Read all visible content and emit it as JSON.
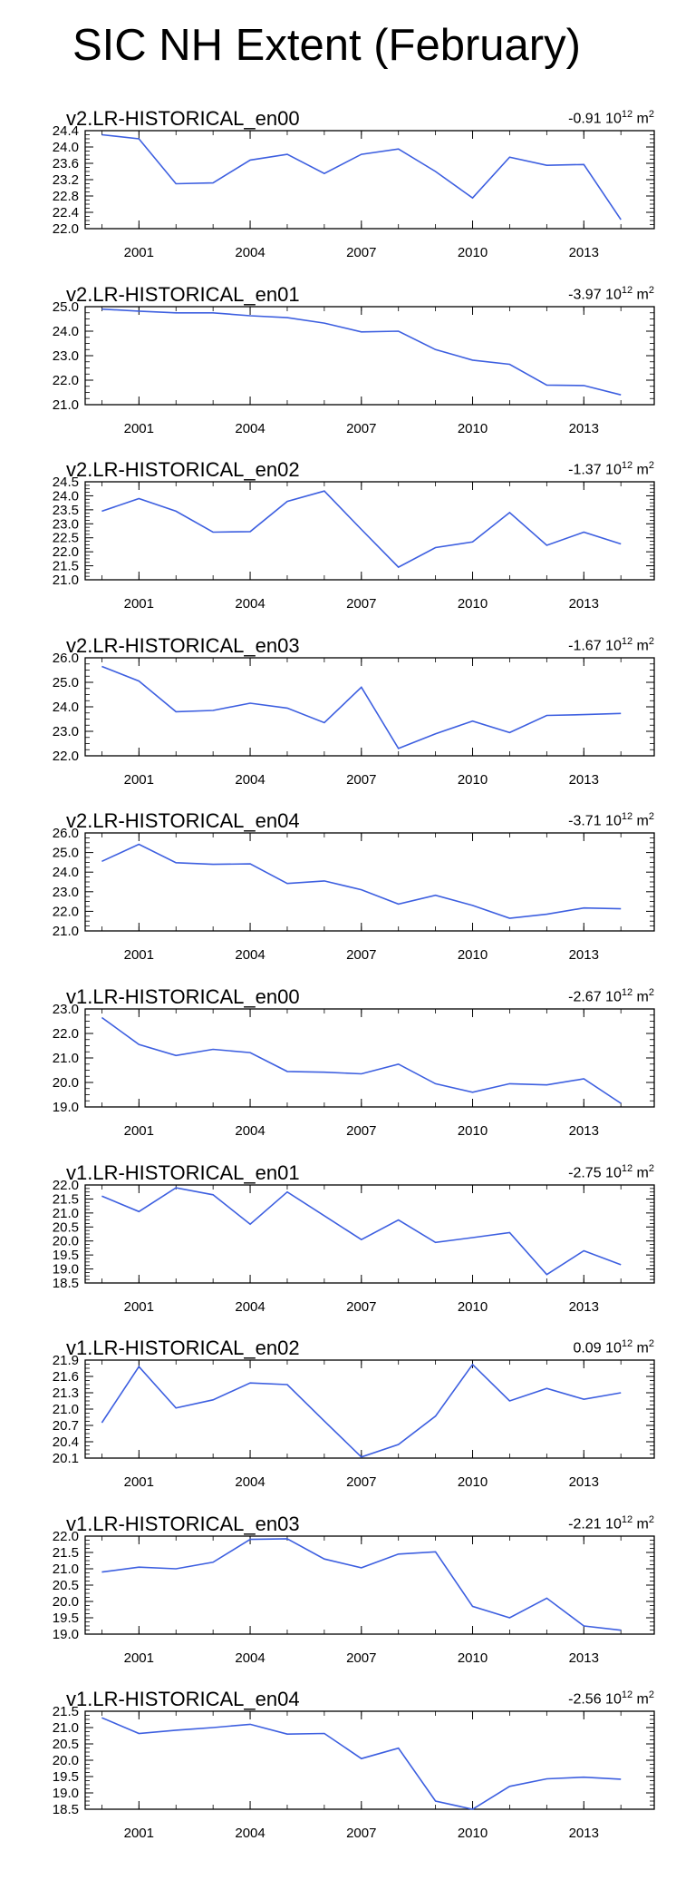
{
  "title": "SIC NH Extent (February)",
  "chart_data": [
    {
      "type": "line",
      "title": "v2.LR-HISTORICAL_en00",
      "trend": "-0.91",
      "trend_exp": "12",
      "trend_unit": "m",
      "trend_unit_exp": "2",
      "x": [
        2000,
        2001,
        2002,
        2003,
        2004,
        2005,
        2006,
        2007,
        2008,
        2009,
        2010,
        2011,
        2012,
        2013,
        2014
      ],
      "series": [
        {
          "values": [
            24.3,
            24.2,
            23.1,
            23.12,
            23.68,
            23.82,
            23.35,
            23.82,
            23.95,
            23.4,
            22.75,
            23.75,
            23.55,
            23.57,
            22.22
          ]
        }
      ],
      "ylim": [
        22.0,
        24.4
      ],
      "yticks": [
        "24.4",
        "24.0",
        "23.6",
        "23.2",
        "22.8",
        "22.4",
        "22.0"
      ],
      "xticks": [
        "2001",
        "2004",
        "2007",
        "2010",
        "2013"
      ],
      "color": "#3d5fe0"
    },
    {
      "type": "line",
      "title": "v2.LR-HISTORICAL_en01",
      "trend": "-3.97",
      "trend_exp": "12",
      "trend_unit": "m",
      "trend_unit_exp": "2",
      "x": [
        2000,
        2001,
        2002,
        2003,
        2004,
        2005,
        2006,
        2007,
        2008,
        2009,
        2010,
        2011,
        2012,
        2013,
        2014
      ],
      "series": [
        {
          "values": [
            24.9,
            24.82,
            24.75,
            24.75,
            24.63,
            24.55,
            24.33,
            23.97,
            24.0,
            23.25,
            22.82,
            22.65,
            21.8,
            21.78,
            21.4
          ]
        }
      ],
      "ylim": [
        21.0,
        25.0
      ],
      "yticks": [
        "25.0",
        "24.0",
        "23.0",
        "22.0",
        "21.0"
      ],
      "xticks": [
        "2001",
        "2004",
        "2007",
        "2010",
        "2013"
      ],
      "color": "#3d5fe0"
    },
    {
      "type": "line",
      "title": "v2.LR-HISTORICAL_en02",
      "trend": "-1.37",
      "trend_exp": "12",
      "trend_unit": "m",
      "trend_unit_exp": "2",
      "x": [
        2000,
        2001,
        2002,
        2003,
        2004,
        2005,
        2006,
        2007,
        2008,
        2009,
        2010,
        2011,
        2012,
        2013,
        2014
      ],
      "series": [
        {
          "values": [
            23.45,
            23.9,
            23.45,
            22.7,
            22.72,
            23.8,
            24.17,
            22.8,
            21.45,
            22.15,
            22.35,
            23.4,
            22.23,
            22.7,
            22.28
          ]
        }
      ],
      "ylim": [
        21.0,
        24.5
      ],
      "yticks": [
        "24.5",
        "24.0",
        "23.5",
        "23.0",
        "22.5",
        "22.0",
        "21.5",
        "21.0"
      ],
      "xticks": [
        "2001",
        "2004",
        "2007",
        "2010",
        "2013"
      ],
      "color": "#3d5fe0"
    },
    {
      "type": "line",
      "title": "v2.LR-HISTORICAL_en03",
      "trend": "-1.67",
      "trend_exp": "12",
      "trend_unit": "m",
      "trend_unit_exp": "2",
      "x": [
        2000,
        2001,
        2002,
        2003,
        2004,
        2005,
        2006,
        2007,
        2008,
        2009,
        2010,
        2011,
        2012,
        2013,
        2014
      ],
      "series": [
        {
          "values": [
            25.65,
            25.05,
            23.8,
            23.85,
            24.15,
            23.95,
            23.35,
            24.8,
            22.3,
            22.9,
            23.42,
            22.95,
            23.65,
            23.68,
            23.73
          ]
        }
      ],
      "ylim": [
        22.0,
        26.0
      ],
      "yticks": [
        "26.0",
        "25.0",
        "24.0",
        "23.0",
        "22.0"
      ],
      "xticks": [
        "2001",
        "2004",
        "2007",
        "2010",
        "2013"
      ],
      "color": "#3d5fe0"
    },
    {
      "type": "line",
      "title": "v2.LR-HISTORICAL_en04",
      "trend": "-3.71",
      "trend_exp": "12",
      "trend_unit": "m",
      "trend_unit_exp": "2",
      "x": [
        2000,
        2001,
        2002,
        2003,
        2004,
        2005,
        2006,
        2007,
        2008,
        2009,
        2010,
        2011,
        2012,
        2013,
        2014
      ],
      "series": [
        {
          "values": [
            24.55,
            25.42,
            24.48,
            24.4,
            24.42,
            23.42,
            23.55,
            23.1,
            22.37,
            22.82,
            22.3,
            21.65,
            21.85,
            22.17,
            22.13
          ]
        }
      ],
      "ylim": [
        21.0,
        26.0
      ],
      "yticks": [
        "26.0",
        "25.0",
        "24.0",
        "23.0",
        "22.0",
        "21.0"
      ],
      "xticks": [
        "2001",
        "2004",
        "2007",
        "2010",
        "2013"
      ],
      "color": "#3d5fe0"
    },
    {
      "type": "line",
      "title": "v1.LR-HISTORICAL_en00",
      "trend": "-2.67",
      "trend_exp": "12",
      "trend_unit": "m",
      "trend_unit_exp": "2",
      "x": [
        2000,
        2001,
        2002,
        2003,
        2004,
        2005,
        2006,
        2007,
        2008,
        2009,
        2010,
        2011,
        2012,
        2013,
        2014
      ],
      "series": [
        {
          "values": [
            22.65,
            21.55,
            21.1,
            21.35,
            21.22,
            20.45,
            20.42,
            20.35,
            20.75,
            19.95,
            19.6,
            19.95,
            19.9,
            20.15,
            19.15
          ]
        }
      ],
      "ylim": [
        19.0,
        23.0
      ],
      "yticks": [
        "23.0",
        "22.0",
        "21.0",
        "20.0",
        "19.0"
      ],
      "xticks": [
        "2001",
        "2004",
        "2007",
        "2010",
        "2013"
      ],
      "color": "#3d5fe0"
    },
    {
      "type": "line",
      "title": "v1.LR-HISTORICAL_en01",
      "trend": "-2.75",
      "trend_exp": "12",
      "trend_unit": "m",
      "trend_unit_exp": "2",
      "x": [
        2000,
        2001,
        2002,
        2003,
        2004,
        2005,
        2006,
        2007,
        2008,
        2009,
        2010,
        2011,
        2012,
        2013,
        2014
      ],
      "series": [
        {
          "values": [
            21.6,
            21.05,
            21.9,
            21.65,
            20.6,
            21.75,
            20.9,
            20.05,
            20.75,
            19.95,
            20.12,
            20.3,
            18.8,
            19.65,
            19.15
          ]
        }
      ],
      "ylim": [
        18.5,
        22.0
      ],
      "yticks": [
        "22.0",
        "21.5",
        "21.0",
        "20.5",
        "20.0",
        "19.5",
        "19.0",
        "18.5"
      ],
      "xticks": [
        "2001",
        "2004",
        "2007",
        "2010",
        "2013"
      ],
      "color": "#3d5fe0"
    },
    {
      "type": "line",
      "title": "v1.LR-HISTORICAL_en02",
      "trend": "0.09",
      "trend_exp": "12",
      "trend_unit": "m",
      "trend_unit_exp": "2",
      "x": [
        2000,
        2001,
        2002,
        2003,
        2004,
        2005,
        2006,
        2007,
        2008,
        2009,
        2010,
        2011,
        2012,
        2013,
        2014
      ],
      "series": [
        {
          "values": [
            20.75,
            21.78,
            21.02,
            21.17,
            21.48,
            21.45,
            20.78,
            20.12,
            20.35,
            20.87,
            21.82,
            21.15,
            21.38,
            21.18,
            21.3
          ]
        }
      ],
      "ylim": [
        20.1,
        21.9
      ],
      "yticks": [
        "21.9",
        "21.6",
        "21.3",
        "21.0",
        "20.7",
        "20.4",
        "20.1"
      ],
      "xticks": [
        "2001",
        "2004",
        "2007",
        "2010",
        "2013"
      ],
      "color": "#3d5fe0"
    },
    {
      "type": "line",
      "title": "v1.LR-HISTORICAL_en03",
      "trend": "-2.21",
      "trend_exp": "12",
      "trend_unit": "m",
      "trend_unit_exp": "2",
      "x": [
        2000,
        2001,
        2002,
        2003,
        2004,
        2005,
        2006,
        2007,
        2008,
        2009,
        2010,
        2011,
        2012,
        2013,
        2014
      ],
      "series": [
        {
          "values": [
            20.9,
            21.05,
            21.0,
            21.2,
            21.9,
            21.92,
            21.3,
            21.03,
            21.45,
            21.52,
            19.85,
            19.5,
            20.1,
            19.25,
            19.12
          ]
        }
      ],
      "ylim": [
        19.0,
        22.0
      ],
      "yticks": [
        "22.0",
        "21.5",
        "21.0",
        "20.5",
        "20.0",
        "19.5",
        "19.0"
      ],
      "xticks": [
        "2001",
        "2004",
        "2007",
        "2010",
        "2013"
      ],
      "color": "#3d5fe0"
    },
    {
      "type": "line",
      "title": "v1.LR-HISTORICAL_en04",
      "trend": "-2.56",
      "trend_exp": "12",
      "trend_unit": "m",
      "trend_unit_exp": "2",
      "x": [
        2000,
        2001,
        2002,
        2003,
        2004,
        2005,
        2006,
        2007,
        2008,
        2009,
        2010,
        2011,
        2012,
        2013,
        2014
      ],
      "series": [
        {
          "values": [
            21.3,
            20.82,
            20.92,
            21.0,
            21.1,
            20.8,
            20.82,
            20.05,
            20.37,
            18.75,
            18.5,
            19.2,
            19.43,
            19.48,
            19.42
          ]
        }
      ],
      "ylim": [
        18.5,
        21.5
      ],
      "yticks": [
        "21.5",
        "21.0",
        "20.5",
        "20.0",
        "19.5",
        "19.0",
        "18.5"
      ],
      "xticks": [
        "2001",
        "2004",
        "2007",
        "2010",
        "2013"
      ],
      "color": "#3d5fe0"
    }
  ]
}
